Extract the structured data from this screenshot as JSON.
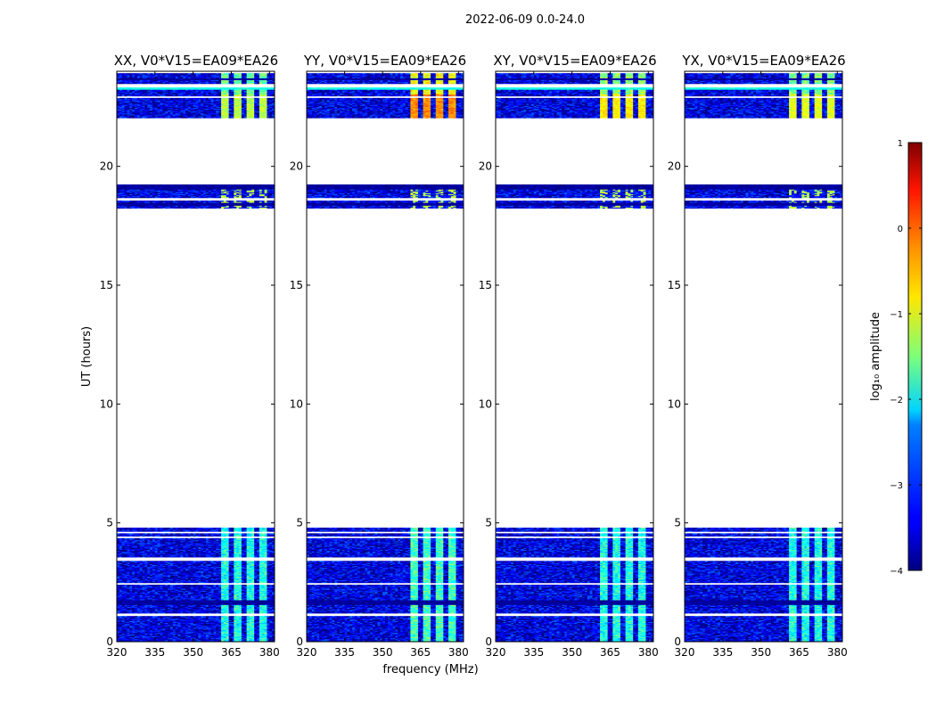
{
  "chart_data": {
    "type": "heatmap",
    "suptitle": "2022-06-09 0.0-24.0",
    "xlabel": "frequency (MHz)",
    "ylabel": "UT (hours)",
    "xlim": [
      320,
      382
    ],
    "ylim": [
      0,
      24
    ],
    "x_ticks": [
      320,
      335,
      350,
      365,
      380
    ],
    "y_ticks": [
      0,
      5,
      10,
      15,
      20
    ],
    "colorbar": {
      "label": "log₁₀ amplitude",
      "range": [
        -4,
        1
      ],
      "ticks": [
        -4,
        -3,
        -2,
        -1,
        0,
        1
      ],
      "colormap": "jet"
    },
    "panels": [
      {
        "title": "XX, V0*V15=EA09*EA26",
        "rfi_level": -1.2,
        "top_band_level": -1.0,
        "low_band_level": -2.0
      },
      {
        "title": "YY, V0*V15=EA09*EA26",
        "rfi_level": -0.3,
        "top_band_level": -0.3,
        "low_band_level": -1.8
      },
      {
        "title": "XY, V0*V15=EA09*EA26",
        "rfi_level": -0.8,
        "top_band_level": -0.8,
        "low_band_level": -2.0
      },
      {
        "title": "YX, V0*V15=EA09*EA26",
        "rfi_level": -1.0,
        "top_band_level": -0.9,
        "low_band_level": -2.0
      }
    ],
    "background_level": -3.5,
    "rfi_channels_mhz": [
      [
        361,
        364.5
      ],
      [
        366,
        369.5
      ],
      [
        371,
        374.5
      ],
      [
        376,
        379.5
      ]
    ],
    "data_time_ranges_ut": [
      [
        0.0,
        4.8
      ],
      [
        18.2,
        19.2
      ],
      [
        22.0,
        23.9
      ]
    ],
    "white_gaps_ut": [
      [
        1.05,
        1.2
      ],
      [
        2.4,
        2.45
      ],
      [
        3.4,
        3.55
      ],
      [
        4.35,
        4.42
      ],
      [
        4.55,
        4.62
      ],
      [
        18.55,
        18.65
      ],
      [
        22.85,
        22.95
      ],
      [
        23.3,
        23.45
      ]
    ],
    "dark_rows_ut": [
      [
        1.55,
        1.75
      ],
      [
        19.0,
        19.2
      ],
      [
        18.35,
        18.45
      ],
      [
        23.6,
        23.7
      ]
    ],
    "cyan_band_ut": [
      23.2,
      23.4
    ]
  }
}
